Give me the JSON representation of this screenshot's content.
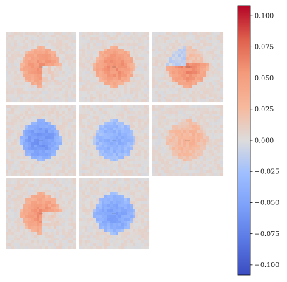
{
  "chart_data": {
    "type": "heatmap",
    "title": "",
    "panel_layout": {
      "rows": 3,
      "cols": 3,
      "empty_cells": [
        8
      ]
    },
    "panels": [
      {
        "index": 0,
        "pattern": "disc_right_cut",
        "peak": 0.055
      },
      {
        "index": 1,
        "pattern": "disc_full",
        "peak": 0.058
      },
      {
        "index": 2,
        "pattern": "disc_mixed",
        "peak": 0.062,
        "negative_peak": -0.02
      },
      {
        "index": 3,
        "pattern": "disc_full",
        "peak": -0.06
      },
      {
        "index": 4,
        "pattern": "disc_full",
        "peak": -0.04
      },
      {
        "index": 5,
        "pattern": "disc_full",
        "peak": 0.03
      },
      {
        "index": 6,
        "pattern": "disc_right_cut",
        "peak": 0.055
      },
      {
        "index": 7,
        "pattern": "disc_full",
        "peak": -0.05
      }
    ],
    "colorbar": {
      "colormap": "coolwarm",
      "vmin": -0.108,
      "vmax": 0.108,
      "tick_values": [
        0.1,
        0.075,
        0.05,
        0.025,
        0.0,
        -0.025,
        -0.05,
        -0.075,
        -0.1
      ],
      "tick_labels": [
        "0.100",
        "0.075",
        "0.050",
        "0.025",
        "0.000",
        "−0.025",
        "−0.050",
        "−0.075",
        "−0.100"
      ]
    }
  }
}
